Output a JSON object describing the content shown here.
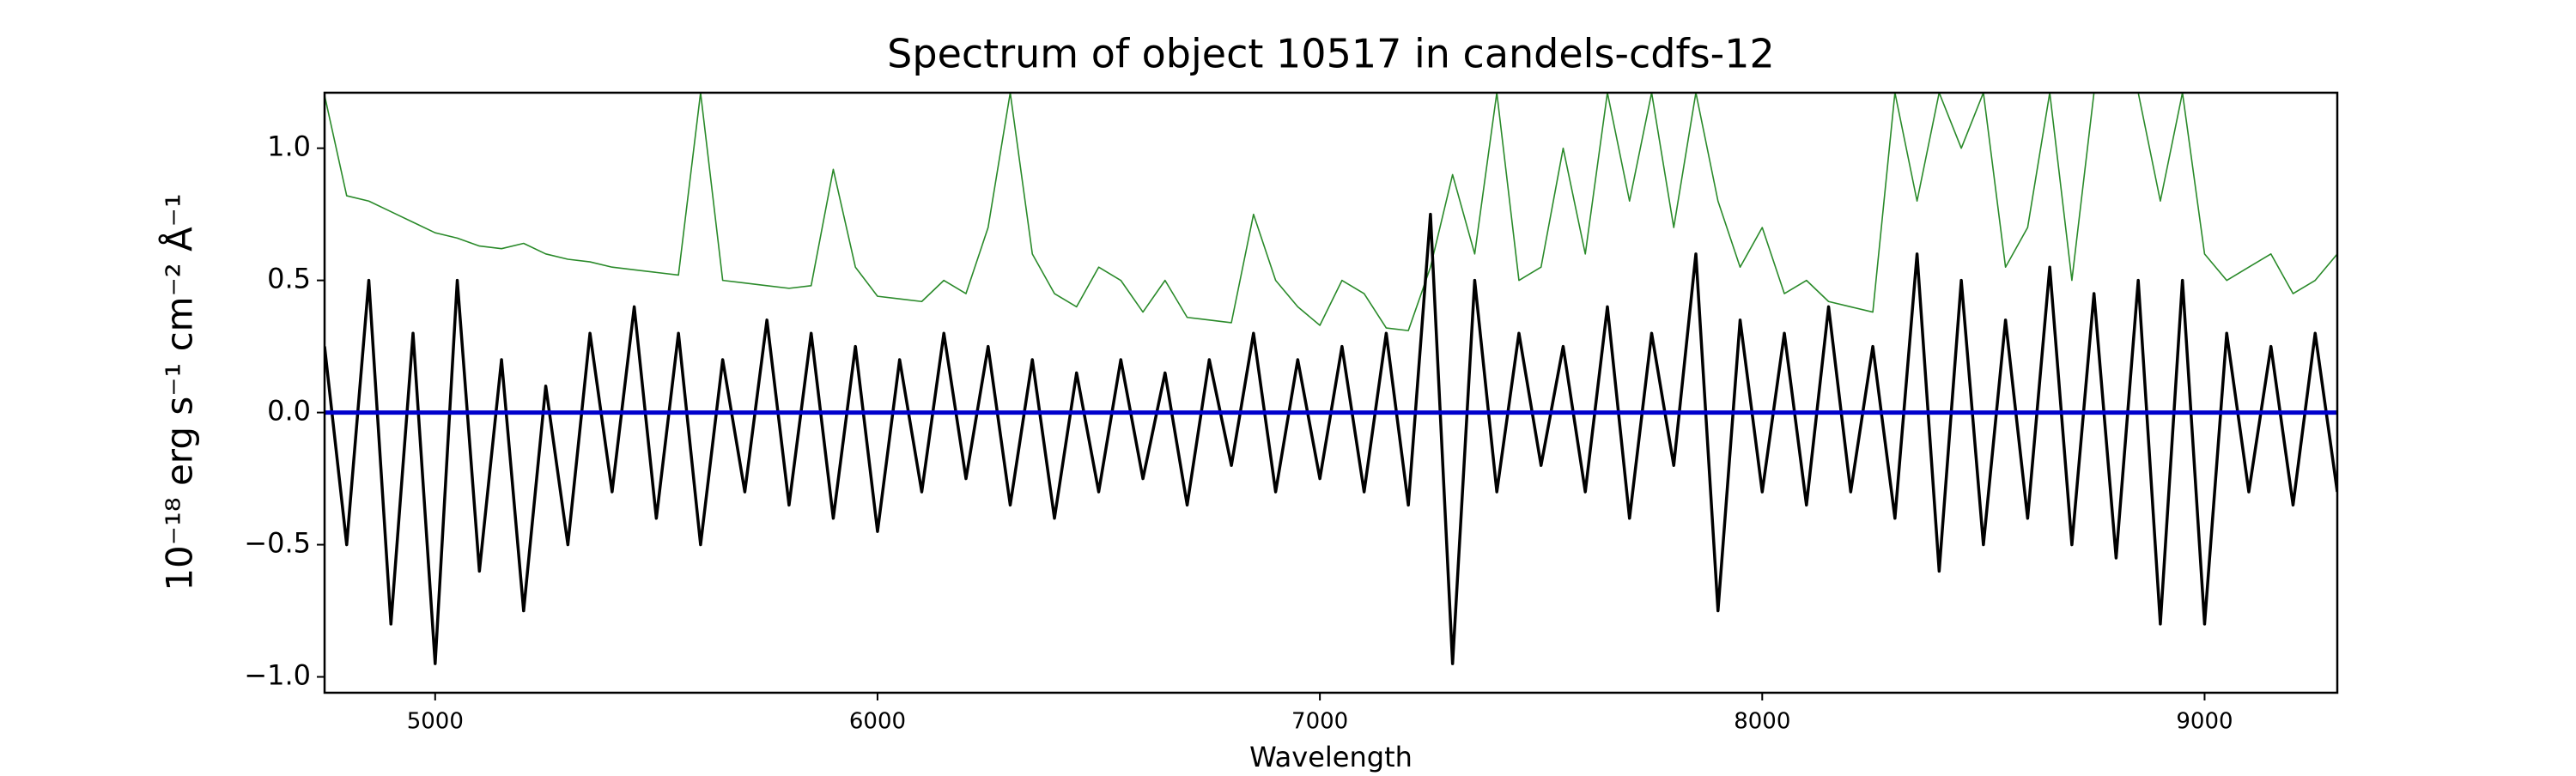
{
  "chart_data": {
    "type": "line",
    "title": "Spectrum of object 10517 in candels-cdfs-12",
    "x_label": "Wavelength",
    "y_label": "10⁻¹⁸ erg s⁻¹ cm⁻² Å⁻¹",
    "xlim": [
      4750,
      9300
    ],
    "ylim": [
      -1.06,
      1.21
    ],
    "xticks": [
      5000,
      6000,
      7000,
      8000,
      9000
    ],
    "yticks": [
      {
        "value": -1.0,
        "label": "−1.0"
      },
      {
        "value": -0.5,
        "label": "−0.5"
      },
      {
        "value": 0.0,
        "label": "0.0"
      },
      {
        "value": 0.5,
        "label": "0.5"
      },
      {
        "value": 1.0,
        "label": "1.0"
      }
    ],
    "grid": false,
    "x": [
      4750,
      4800,
      4850,
      4900,
      4950,
      5000,
      5050,
      5100,
      5150,
      5200,
      5250,
      5300,
      5350,
      5400,
      5450,
      5500,
      5550,
      5600,
      5650,
      5700,
      5750,
      5800,
      5850,
      5900,
      5950,
      6000,
      6050,
      6100,
      6150,
      6200,
      6250,
      6300,
      6350,
      6400,
      6450,
      6500,
      6550,
      6600,
      6650,
      6700,
      6750,
      6800,
      6850,
      6900,
      6950,
      7000,
      7050,
      7100,
      7150,
      7200,
      7250,
      7300,
      7350,
      7400,
      7450,
      7500,
      7550,
      7600,
      7650,
      7700,
      7750,
      7800,
      7850,
      7900,
      7950,
      8000,
      8050,
      8100,
      8150,
      8200,
      8250,
      8300,
      8350,
      8400,
      8450,
      8500,
      8550,
      8600,
      8650,
      8700,
      8750,
      8800,
      8850,
      8900,
      8950,
      9000,
      9050,
      9100,
      9150,
      9200,
      9250,
      9300
    ],
    "series": [
      {
        "color": "#2a8a2a",
        "width": 1.6,
        "values": [
          1.2,
          0.82,
          0.8,
          0.76,
          0.72,
          0.68,
          0.66,
          0.63,
          0.62,
          0.64,
          0.6,
          0.58,
          0.57,
          0.55,
          0.54,
          0.53,
          0.52,
          1.21,
          0.5,
          0.49,
          0.48,
          0.47,
          0.48,
          0.92,
          0.55,
          0.44,
          0.43,
          0.42,
          0.5,
          0.45,
          0.7,
          1.21,
          0.6,
          0.45,
          0.4,
          0.55,
          0.5,
          0.38,
          0.5,
          0.36,
          0.35,
          0.34,
          0.75,
          0.5,
          0.4,
          0.33,
          0.5,
          0.45,
          0.32,
          0.31,
          0.55,
          0.9,
          0.6,
          1.21,
          0.5,
          0.55,
          1.0,
          0.6,
          1.21,
          0.8,
          1.21,
          0.7,
          1.21,
          0.8,
          0.55,
          0.7,
          0.45,
          0.5,
          0.42,
          0.4,
          0.38,
          1.21,
          0.8,
          1.21,
          1.0,
          1.21,
          0.55,
          0.7,
          1.21,
          0.5,
          1.21,
          1.21,
          1.21,
          0.8,
          1.21,
          0.6,
          0.5,
          0.55,
          0.6,
          0.45,
          0.5,
          0.6
        ]
      },
      {
        "color": "#000000",
        "width": 3.5,
        "values": [
          0.25,
          -0.5,
          0.5,
          -0.8,
          0.3,
          -0.95,
          0.5,
          -0.6,
          0.2,
          -0.75,
          0.1,
          -0.5,
          0.3,
          -0.3,
          0.4,
          -0.4,
          0.3,
          -0.5,
          0.2,
          -0.3,
          0.35,
          -0.35,
          0.3,
          -0.4,
          0.25,
          -0.45,
          0.2,
          -0.3,
          0.3,
          -0.25,
          0.25,
          -0.35,
          0.2,
          -0.4,
          0.15,
          -0.3,
          0.2,
          -0.25,
          0.15,
          -0.35,
          0.2,
          -0.2,
          0.3,
          -0.3,
          0.2,
          -0.25,
          0.25,
          -0.3,
          0.3,
          -0.35,
          0.75,
          -0.95,
          0.5,
          -0.3,
          0.3,
          -0.2,
          0.25,
          -0.3,
          0.4,
          -0.4,
          0.3,
          -0.2,
          0.6,
          -0.75,
          0.35,
          -0.3,
          0.3,
          -0.35,
          0.4,
          -0.3,
          0.25,
          -0.4,
          0.6,
          -0.6,
          0.5,
          -0.5,
          0.35,
          -0.4,
          0.55,
          -0.5,
          0.45,
          -0.55,
          0.5,
          -0.8,
          0.5,
          -0.8,
          0.3,
          -0.3,
          0.25,
          -0.35,
          0.3,
          -0.3
        ]
      },
      {
        "color": "#0000cc",
        "width": 5,
        "x": [
          4750,
          9300
        ],
        "values": [
          0.0,
          0.0
        ]
      }
    ]
  }
}
